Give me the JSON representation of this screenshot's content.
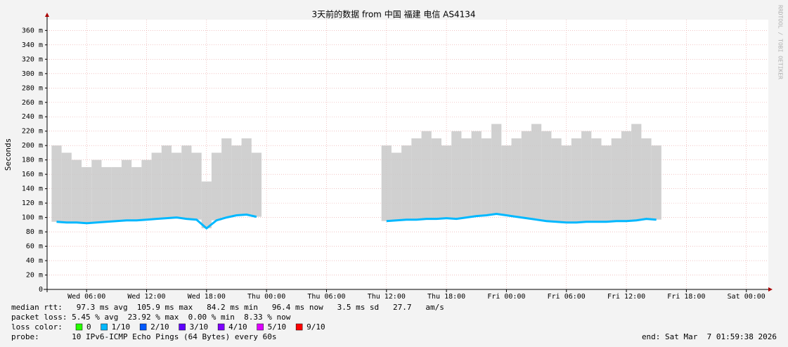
{
  "chart_data": {
    "type": "line",
    "title": "3天前的数据 from 中国 福建 电信 AS4134",
    "y_label": "Seconds",
    "side_label": "RRDTOOL / TOBI OETIKER",
    "xlim": [
      2.05,
      74.2
    ],
    "xticks": [
      {
        "value": 6,
        "label": "Wed 06:00"
      },
      {
        "value": 12,
        "label": "Wed 12:00"
      },
      {
        "value": 18,
        "label": "Wed 18:00"
      },
      {
        "value": 24,
        "label": "Thu 00:00"
      },
      {
        "value": 30,
        "label": "Thu 06:00"
      },
      {
        "value": 36,
        "label": "Thu 12:00"
      },
      {
        "value": 42,
        "label": "Thu 18:00"
      },
      {
        "value": 48,
        "label": "Fri 00:00"
      },
      {
        "value": 54,
        "label": "Fri 06:00"
      },
      {
        "value": 60,
        "label": "Fri 12:00"
      },
      {
        "value": 66,
        "label": "Fri 18:00"
      },
      {
        "value": 72,
        "label": "Sat 00:00"
      }
    ],
    "ylim": [
      0,
      0.375
    ],
    "yticks": [
      0,
      {
        "value": 0.02,
        "label": "20 m"
      },
      {
        "value": 0.04,
        "label": "40 m"
      },
      {
        "value": 0.06,
        "label": "60 m"
      },
      {
        "value": 0.08,
        "label": "80 m"
      },
      {
        "value": 0.1,
        "label": "100 m"
      },
      {
        "value": 0.12,
        "label": "120 m"
      },
      {
        "value": 0.14,
        "label": "140 m"
      },
      {
        "value": 0.16,
        "label": "160 m"
      },
      {
        "value": 0.18,
        "label": "180 m"
      },
      {
        "value": 0.2,
        "label": "200 m"
      },
      {
        "value": 0.22,
        "label": "220 m"
      },
      {
        "value": 0.24,
        "label": "240 m"
      },
      {
        "value": 0.26,
        "label": "260 m"
      },
      {
        "value": 0.28,
        "label": "280 m"
      },
      {
        "value": 0.3,
        "label": "300 m"
      },
      {
        "value": 0.32,
        "label": "320 m"
      },
      {
        "value": 0.34,
        "label": "340 m"
      },
      {
        "value": 0.36,
        "label": "360 m"
      }
    ],
    "grid": true,
    "x": [
      3,
      4,
      5,
      6,
      7,
      8,
      9,
      10,
      11,
      12,
      13,
      14,
      15,
      16,
      17,
      18,
      19,
      20,
      21,
      22,
      23,
      24,
      36,
      37,
      38,
      39,
      40,
      41,
      42,
      43,
      44,
      45,
      46,
      47,
      48,
      49,
      50,
      51,
      52,
      53,
      54,
      55,
      56,
      57,
      58,
      59,
      60,
      61,
      62,
      63
    ],
    "series": [
      {
        "name": "median rtt",
        "color": "#00b8ff",
        "values": [
          0.094,
          0.093,
          0.093,
          0.092,
          0.093,
          0.094,
          0.095,
          0.096,
          0.096,
          0.097,
          0.098,
          0.099,
          0.1,
          0.098,
          0.097,
          0.085,
          0.096,
          0.1,
          0.103,
          0.104,
          0.101,
          null,
          0.095,
          0.096,
          0.097,
          0.097,
          0.098,
          0.098,
          0.099,
          0.098,
          0.1,
          0.102,
          0.103,
          0.105,
          0.103,
          0.101,
          0.099,
          0.097,
          0.095,
          0.094,
          0.093,
          0.093,
          0.094,
          0.094,
          0.094,
          0.095,
          0.095,
          0.096,
          0.098,
          0.097
        ]
      },
      {
        "name": "smoke max",
        "color": "#c8c8c8",
        "values": [
          0.2,
          0.19,
          0.18,
          0.17,
          0.18,
          0.17,
          0.17,
          0.18,
          0.17,
          0.18,
          0.19,
          0.2,
          0.19,
          0.2,
          0.19,
          0.15,
          0.19,
          0.21,
          0.2,
          0.21,
          0.19,
          null,
          0.2,
          0.19,
          0.2,
          0.21,
          0.22,
          0.21,
          0.2,
          0.22,
          0.21,
          0.22,
          0.21,
          0.23,
          0.2,
          0.21,
          0.22,
          0.23,
          0.22,
          0.21,
          0.2,
          0.21,
          0.22,
          0.21,
          0.2,
          0.21,
          0.22,
          0.23,
          0.21,
          0.2
        ]
      }
    ],
    "stats": [
      "median rtt:   97.3 ms avg  105.9 ms max   84.2 ms min   96.4 ms now   3.5 ms sd   27.7   am/s",
      "packet loss: 5.45 % avg  23.92 % max  0.00 % min  8.33 % now"
    ],
    "loss_label": "loss color:",
    "loss_colors": [
      {
        "label": "0",
        "color": "#26ff00"
      },
      {
        "label": "1/10",
        "color": "#00b8ff"
      },
      {
        "label": "2/10",
        "color": "#0059ff"
      },
      {
        "label": "3/10",
        "color": "#5e00ff"
      },
      {
        "label": "4/10",
        "color": "#7e00ff"
      },
      {
        "label": "5/10",
        "color": "#dd00ff"
      },
      {
        "label": "9/10",
        "color": "#ff0000"
      }
    ],
    "probe": "probe:       10 IPv6-ICMP Echo Pings (64 Bytes) every 60s",
    "end": "end: Sat Mar  7 01:59:38 2026"
  }
}
